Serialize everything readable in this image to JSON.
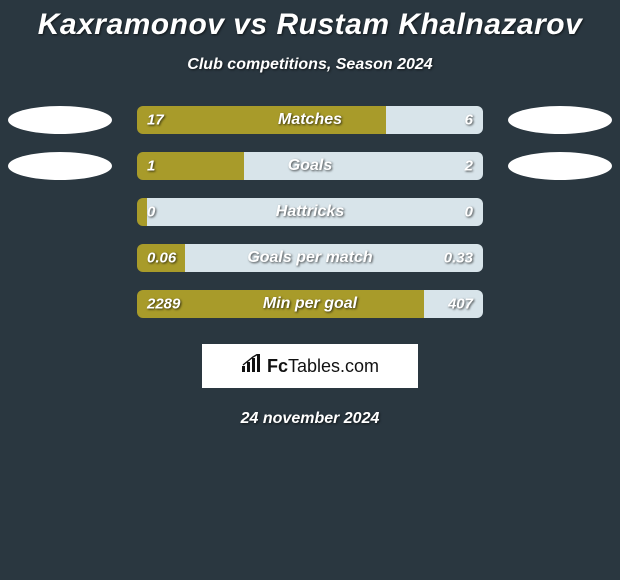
{
  "title": "Kaxramonov vs Rustam Khalnazarov",
  "subtitle": "Club competitions, Season 2024",
  "date": "24 november 2024",
  "brand": {
    "name_strong": "Fc",
    "name_light": "Tables.com"
  },
  "colors": {
    "left_fill": "#a89b2a",
    "right_fill": "#d8e4ea",
    "oval": "#ffffff",
    "background": "#2a3740"
  },
  "rows": [
    {
      "label": "Matches",
      "left": "17",
      "right": "6",
      "left_pct": 72,
      "right_pct": 28,
      "show_ovals": true
    },
    {
      "label": "Goals",
      "left": "1",
      "right": "2",
      "left_pct": 31,
      "right_pct": 69,
      "show_ovals": true
    },
    {
      "label": "Hattricks",
      "left": "0",
      "right": "0",
      "left_pct": 3,
      "right_pct": 97,
      "show_ovals": false
    },
    {
      "label": "Goals per match",
      "left": "0.06",
      "right": "0.33",
      "left_pct": 14,
      "right_pct": 86,
      "show_ovals": false
    },
    {
      "label": "Min per goal",
      "left": "2289",
      "right": "407",
      "left_pct": 83,
      "right_pct": 17,
      "show_ovals": false
    }
  ]
}
